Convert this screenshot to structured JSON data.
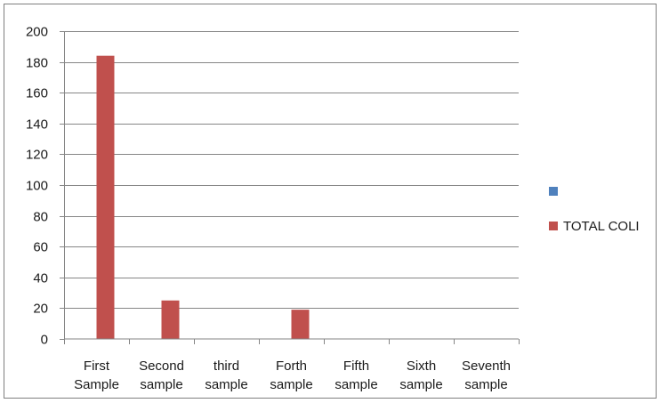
{
  "chart_data": {
    "type": "bar",
    "categories": [
      [
        "First",
        "Sample"
      ],
      [
        "Second",
        "sample"
      ],
      [
        "third",
        "sample"
      ],
      [
        "Forth",
        "sample"
      ],
      [
        "Fifth",
        "sample"
      ],
      [
        "Sixth",
        "sample"
      ],
      [
        "Seventh",
        "sample"
      ]
    ],
    "series": [
      {
        "name": "",
        "color": "#4f81bd",
        "values": [
          0,
          0,
          0,
          0,
          0,
          0,
          0
        ]
      },
      {
        "name": "TOTAL COLI",
        "color": "#c0504d",
        "values": [
          184,
          25,
          0,
          19,
          0,
          0,
          0
        ]
      }
    ],
    "ylim": [
      0,
      200
    ],
    "yticks": [
      0,
      20,
      40,
      60,
      80,
      100,
      120,
      140,
      160,
      180,
      200
    ],
    "grid": true,
    "legend": "right"
  }
}
